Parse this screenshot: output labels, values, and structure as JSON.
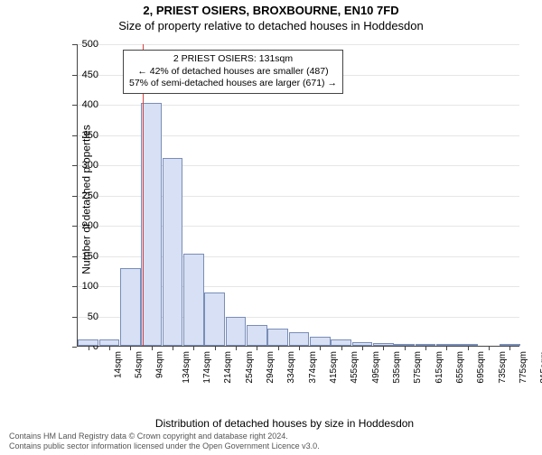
{
  "title": {
    "line1": "2, PRIEST OSIERS, BROXBOURNE, EN10 7FD",
    "line2": "Size of property relative to detached houses in Hoddesdon"
  },
  "axis": {
    "ylabel": "Number of detached properties",
    "xlabel": "Distribution of detached houses by size in Hoddesdon",
    "ylim": [
      0,
      500
    ],
    "yticks": [
      0,
      50,
      100,
      150,
      200,
      250,
      300,
      350,
      400,
      450,
      500
    ]
  },
  "histogram": {
    "type": "histogram",
    "bar_color": "#d7e0f4",
    "bar_border": "#7a8db8",
    "grid_color": "#e6e6e6",
    "background_color": "#ffffff",
    "x_labels": [
      "14sqm",
      "54sqm",
      "94sqm",
      "134sqm",
      "174sqm",
      "214sqm",
      "254sqm",
      "294sqm",
      "334sqm",
      "374sqm",
      "415sqm",
      "455sqm",
      "495sqm",
      "535sqm",
      "575sqm",
      "615sqm",
      "655sqm",
      "695sqm",
      "735sqm",
      "775sqm",
      "815sqm"
    ],
    "values": [
      10,
      10,
      128,
      402,
      310,
      152,
      88,
      48,
      35,
      28,
      22,
      15,
      10,
      6,
      4,
      3,
      1,
      2,
      1,
      0,
      1
    ]
  },
  "marker": {
    "fraction": 0.147,
    "color": "#d44444"
  },
  "annotation": {
    "line1": "2 PRIEST OSIERS: 131sqm",
    "line2": "← 42% of detached houses are smaller (487)",
    "line3": "57% of semi-detached houses are larger (671) →"
  },
  "footer": {
    "line1": "Contains HM Land Registry data © Crown copyright and database right 2024.",
    "line2": "Contains public sector information licensed under the Open Government Licence v3.0."
  }
}
